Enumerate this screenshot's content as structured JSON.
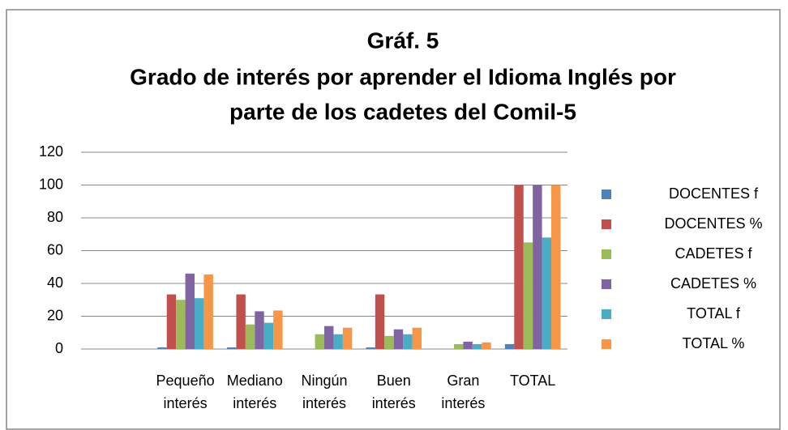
{
  "chart_data": {
    "type": "bar",
    "title": [
      "Gráf. 5",
      "Grado de interés por aprender el Idioma Inglés por",
      "parte de los cadetes del Comil-5"
    ],
    "categories": [
      null,
      "Pequeño interés",
      "Mediano interés",
      "Ningún interés",
      "Buen interés",
      "Gran interés",
      "TOTAL"
    ],
    "series": [
      {
        "name": "DOCENTES f",
        "color": "#4f81bd",
        "values": [
          null,
          1,
          1,
          0,
          1,
          0,
          3
        ]
      },
      {
        "name": "DOCENTES %",
        "color": "#c0504d",
        "values": [
          null,
          33.3,
          33.3,
          0,
          33.3,
          0,
          100
        ]
      },
      {
        "name": "CADETES f",
        "color": "#9bbb59",
        "values": [
          null,
          30,
          15,
          9,
          8,
          3,
          65
        ]
      },
      {
        "name": "CADETES %",
        "color": "#8064a2",
        "values": [
          null,
          46,
          23,
          14,
          12,
          4.5,
          100
        ]
      },
      {
        "name": "TOTAL f",
        "color": "#4bacc6",
        "values": [
          null,
          31,
          16,
          9,
          9,
          3,
          68
        ]
      },
      {
        "name": "TOTAL %",
        "color": "#f79646",
        "values": [
          null,
          45.5,
          23.5,
          13,
          13,
          4,
          100
        ]
      }
    ],
    "ylim": [
      0,
      120
    ],
    "yticks": [
      0,
      20,
      40,
      60,
      80,
      100,
      120
    ],
    "grid": true,
    "legend": "right"
  }
}
